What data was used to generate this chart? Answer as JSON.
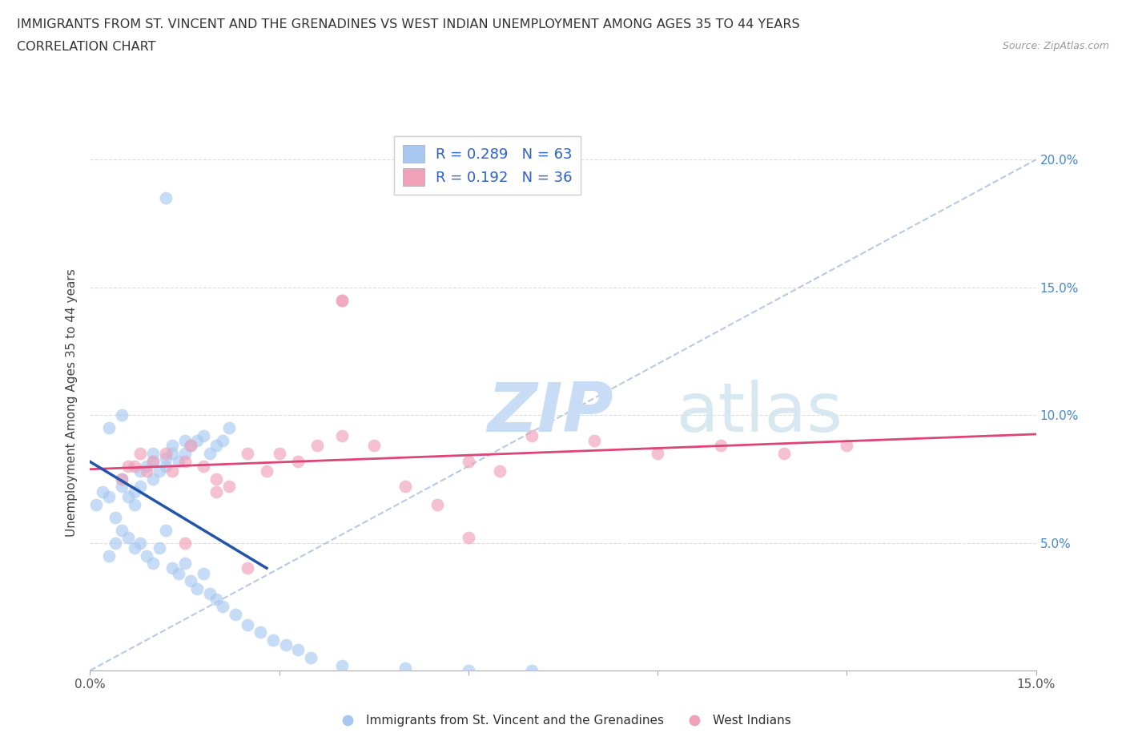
{
  "title_line1": "IMMIGRANTS FROM ST. VINCENT AND THE GRENADINES VS WEST INDIAN UNEMPLOYMENT AMONG AGES 35 TO 44 YEARS",
  "title_line2": "CORRELATION CHART",
  "source_text": "Source: ZipAtlas.com",
  "ylabel": "Unemployment Among Ages 35 to 44 years",
  "xlim": [
    0.0,
    0.15
  ],
  "ylim": [
    0.0,
    0.21
  ],
  "xtick_positions": [
    0.0,
    0.03,
    0.06,
    0.09,
    0.12,
    0.15
  ],
  "xtick_labels": [
    "0.0%",
    "",
    "",
    "",
    "",
    "15.0%"
  ],
  "ytick_positions": [
    0.0,
    0.05,
    0.1,
    0.15,
    0.2
  ],
  "ytick_labels": [
    "",
    "5.0%",
    "10.0%",
    "15.0%",
    "20.0%"
  ],
  "legend_label1": "Immigrants from St. Vincent and the Grenadines",
  "legend_label2": "West Indians",
  "R1": 0.289,
  "N1": 63,
  "R2": 0.192,
  "N2": 36,
  "color_blue": "#a8c8f0",
  "color_pink": "#f0a0b8",
  "line_color_blue": "#2255aa",
  "line_color_pink": "#dd4477",
  "scatter_alpha": 0.65,
  "scatter_size": 130,
  "blue_x": [
    0.001,
    0.002,
    0.003,
    0.004,
    0.005,
    0.005,
    0.006,
    0.007,
    0.007,
    0.008,
    0.008,
    0.009,
    0.01,
    0.01,
    0.01,
    0.011,
    0.012,
    0.012,
    0.013,
    0.013,
    0.014,
    0.015,
    0.015,
    0.016,
    0.017,
    0.018,
    0.019,
    0.02,
    0.021,
    0.022,
    0.003,
    0.004,
    0.005,
    0.006,
    0.007,
    0.008,
    0.009,
    0.01,
    0.011,
    0.012,
    0.013,
    0.014,
    0.015,
    0.016,
    0.017,
    0.018,
    0.019,
    0.02,
    0.021,
    0.023,
    0.025,
    0.027,
    0.029,
    0.031,
    0.033,
    0.035,
    0.04,
    0.05,
    0.06,
    0.07,
    0.012,
    0.005,
    0.003
  ],
  "blue_y": [
    0.065,
    0.07,
    0.068,
    0.06,
    0.072,
    0.075,
    0.068,
    0.065,
    0.07,
    0.072,
    0.078,
    0.08,
    0.075,
    0.082,
    0.085,
    0.078,
    0.08,
    0.083,
    0.085,
    0.088,
    0.082,
    0.085,
    0.09,
    0.088,
    0.09,
    0.092,
    0.085,
    0.088,
    0.09,
    0.095,
    0.045,
    0.05,
    0.055,
    0.052,
    0.048,
    0.05,
    0.045,
    0.042,
    0.048,
    0.055,
    0.04,
    0.038,
    0.042,
    0.035,
    0.032,
    0.038,
    0.03,
    0.028,
    0.025,
    0.022,
    0.018,
    0.015,
    0.012,
    0.01,
    0.008,
    0.005,
    0.002,
    0.001,
    0.0,
    0.0,
    0.185,
    0.1,
    0.095
  ],
  "pink_x": [
    0.005,
    0.006,
    0.007,
    0.008,
    0.009,
    0.01,
    0.012,
    0.013,
    0.015,
    0.016,
    0.018,
    0.02,
    0.022,
    0.025,
    0.028,
    0.03,
    0.033,
    0.036,
    0.04,
    0.045,
    0.05,
    0.055,
    0.06,
    0.065,
    0.07,
    0.08,
    0.09,
    0.1,
    0.11,
    0.12,
    0.04,
    0.04,
    0.025,
    0.015,
    0.02,
    0.06
  ],
  "pink_y": [
    0.075,
    0.08,
    0.08,
    0.085,
    0.078,
    0.082,
    0.085,
    0.078,
    0.082,
    0.088,
    0.08,
    0.075,
    0.072,
    0.085,
    0.078,
    0.085,
    0.082,
    0.088,
    0.092,
    0.088,
    0.072,
    0.065,
    0.082,
    0.078,
    0.092,
    0.09,
    0.085,
    0.088,
    0.085,
    0.088,
    0.145,
    0.145,
    0.04,
    0.05,
    0.07,
    0.052
  ],
  "ref_line_color": "#aabbdd",
  "grid_color": "#dddddd"
}
